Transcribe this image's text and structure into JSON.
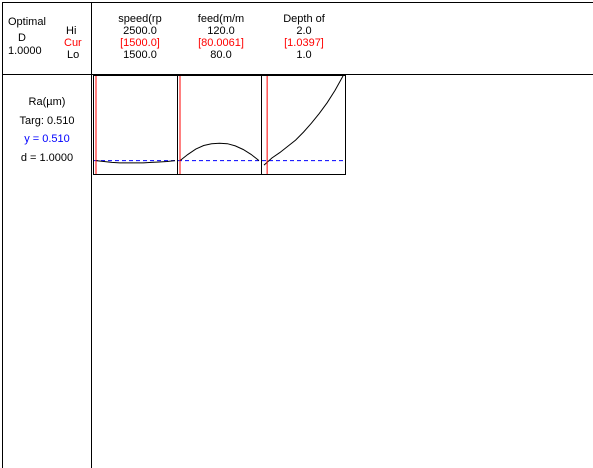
{
  "header": {
    "optimal_label": "Optimal",
    "d_label": "D",
    "d_value": "1.0000",
    "row_labels": {
      "hi": "Hi",
      "cur": "Cur",
      "lo": "Lo"
    }
  },
  "factors": [
    {
      "name": "speed(rp",
      "hi": "2500.0",
      "cur": "[1500.0]",
      "lo": "1500.0"
    },
    {
      "name": "feed(m/m",
      "hi": "120.0",
      "cur": "[80.0061]",
      "lo": "80.0"
    },
    {
      "name": "Depth of",
      "hi": "2.0",
      "cur": "[1.0397]",
      "lo": "1.0"
    }
  ],
  "response": {
    "name": "Ra(µm)",
    "targ": "Targ: 0.510",
    "y": "y = 0.510",
    "d": "d = 1.0000"
  },
  "colors": {
    "current": "#ff0000",
    "predicted": "#0000ff",
    "curve": "#000000"
  },
  "chart_data": {
    "type": "line",
    "y_current": 0.51,
    "panels": [
      {
        "factor": "speed(rp",
        "xlim": [
          1500.0,
          2500.0
        ],
        "current_x": 1500.0,
        "x": [
          1500,
          1600,
          1700,
          1800,
          1900,
          2000,
          2100,
          2200,
          2300,
          2400,
          2500
        ],
        "y": [
          0.51,
          0.508,
          0.506,
          0.505,
          0.505,
          0.505,
          0.505,
          0.506,
          0.507,
          0.508,
          0.51
        ]
      },
      {
        "factor": "feed(m/m",
        "xlim": [
          80.0,
          120.0
        ],
        "current_x": 80.0061,
        "x": [
          80,
          84,
          88,
          92,
          96,
          100,
          104,
          108,
          112,
          116,
          120
        ],
        "y": [
          0.51,
          0.524,
          0.536,
          0.544,
          0.548,
          0.549,
          0.548,
          0.543,
          0.535,
          0.524,
          0.51
        ]
      },
      {
        "factor": "Depth of",
        "xlim": [
          1.0,
          2.0
        ],
        "current_x": 1.0397,
        "x": [
          1.0,
          1.1,
          1.2,
          1.3,
          1.4,
          1.5,
          1.6,
          1.7,
          1.8,
          1.9,
          2.0
        ],
        "y": [
          0.5,
          0.516,
          0.528,
          0.542,
          0.556,
          0.574,
          0.594,
          0.616,
          0.64,
          0.668,
          0.7
        ]
      }
    ],
    "ylim": [
      0.48,
      0.7
    ]
  }
}
